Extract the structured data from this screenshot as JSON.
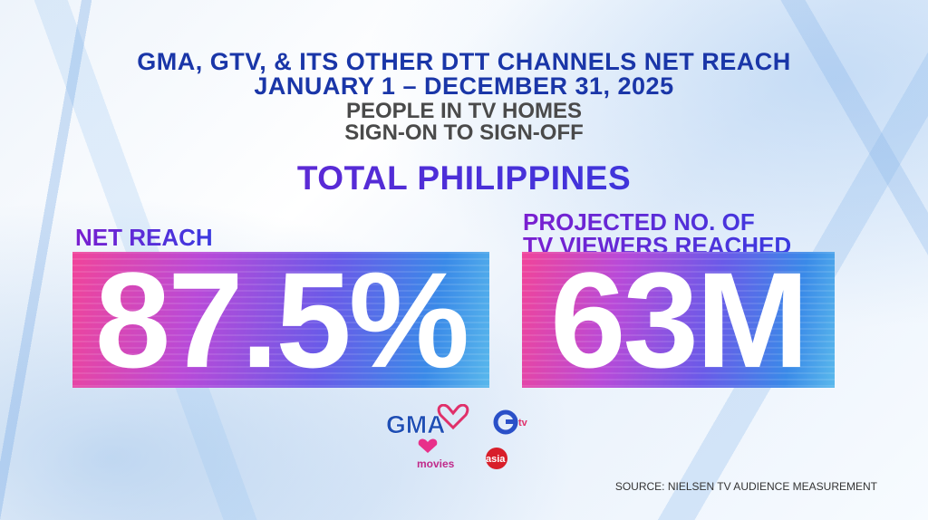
{
  "header": {
    "title_line1": "GMA, GTV, & ITS OTHER DTT CHANNELS NET REACH",
    "title_line2": "JANUARY 1 – DECEMBER 31, 2025",
    "subtitle_line1": "PEOPLE IN TV HOMES",
    "subtitle_line2": "SIGN-ON TO SIGN-OFF"
  },
  "region": "TOTAL PHILIPPINES",
  "stats": {
    "net_reach_label": "NET REACH",
    "net_reach_value": "87.5%",
    "projected_label_line1": "PROJECTED NO. OF",
    "projected_label_line2": "TV VIEWERS REACHED",
    "projected_value": "63M"
  },
  "logos": {
    "gma": "GMA",
    "gtv": "tv",
    "imovies": "movies",
    "heart_of_asia": "asia"
  },
  "source": "SOURCE: NIELSEN TV AUDIENCE MEASUREMENT",
  "colors": {
    "title_blue": "#1a36a8",
    "region_purple": "#7b1fd0",
    "box_gradient_start": "#f0449a",
    "box_gradient_end": "#59b8ec"
  }
}
